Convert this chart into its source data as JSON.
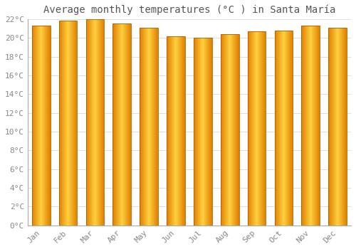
{
  "title": "Average monthly temperatures (°C ) in Santa María",
  "months": [
    "Jan",
    "Feb",
    "Mar",
    "Apr",
    "May",
    "Jun",
    "Jul",
    "Aug",
    "Sep",
    "Oct",
    "Nov",
    "Dec"
  ],
  "temperatures": [
    21.3,
    21.8,
    22.0,
    21.5,
    21.1,
    20.2,
    20.0,
    20.4,
    20.7,
    20.8,
    21.3,
    21.1
  ],
  "bar_color_left": "#E08000",
  "bar_color_center": "#FFD040",
  "bar_color_right": "#E08000",
  "ylim": [
    0,
    22
  ],
  "ytick_step": 2,
  "background_color": "#FFFFFF",
  "grid_color": "#DDDDDD",
  "title_fontsize": 10,
  "tick_fontsize": 8,
  "bar_width": 0.68
}
